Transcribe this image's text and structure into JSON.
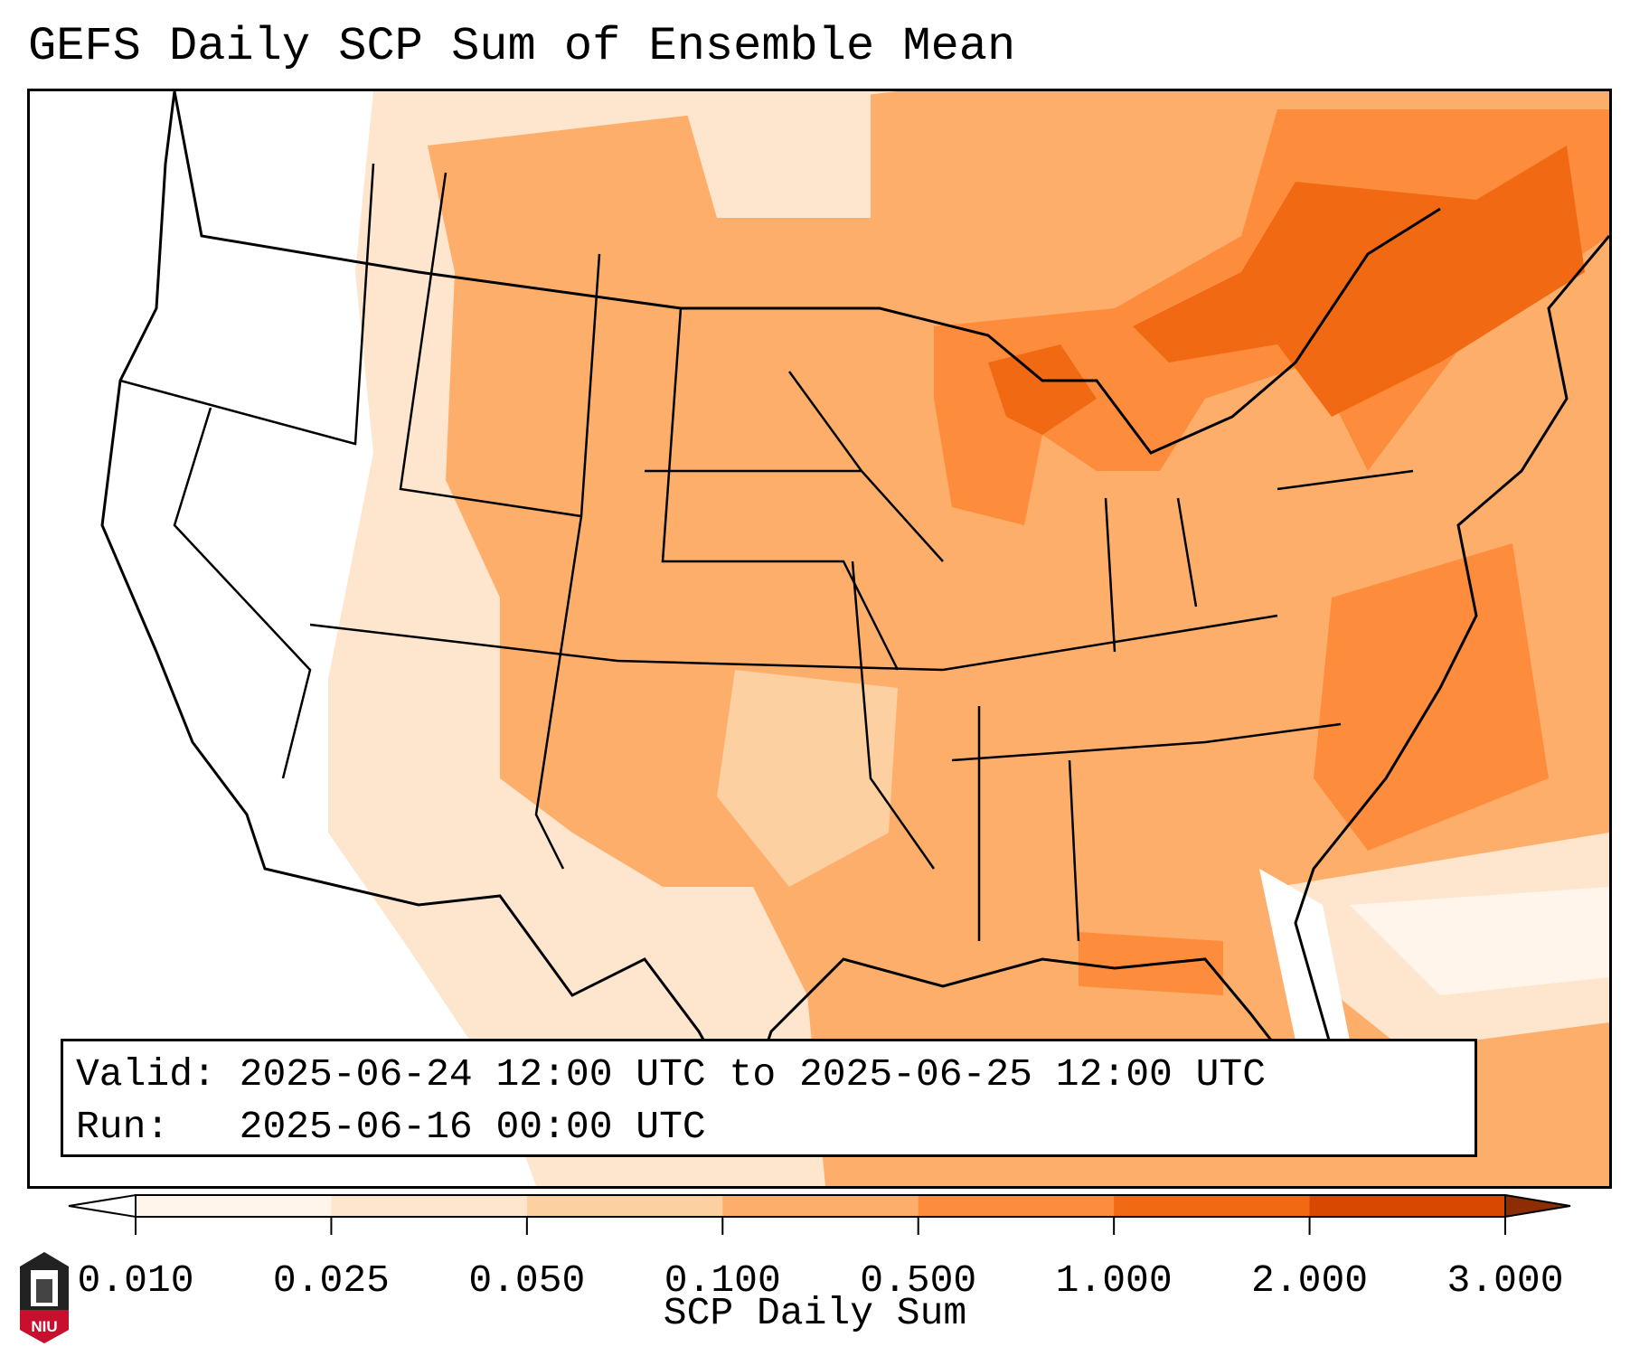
{
  "title": "GEFS Daily SCP Sum of Ensemble Mean",
  "info": {
    "valid_label": "Valid:",
    "valid_value": "2025-06-24 12:00 UTC to 2025-06-25 12:00 UTC",
    "run_label": "Run:",
    "run_value": "2025-06-16 00:00 UTC"
  },
  "colorbar": {
    "label": "SCP Daily Sum",
    "ticks": [
      "0.010",
      "0.025",
      "0.050",
      "0.100",
      "0.500",
      "1.000",
      "2.000",
      "3.000"
    ],
    "colors": [
      "#fff5eb",
      "#fee6ce",
      "#fdd0a2",
      "#fdae6b",
      "#fd8d3c",
      "#f16913",
      "#d94801"
    ],
    "under_color": "#ffffff",
    "over_color": "#8c2d04"
  },
  "logo": {
    "text": "NIU"
  }
}
